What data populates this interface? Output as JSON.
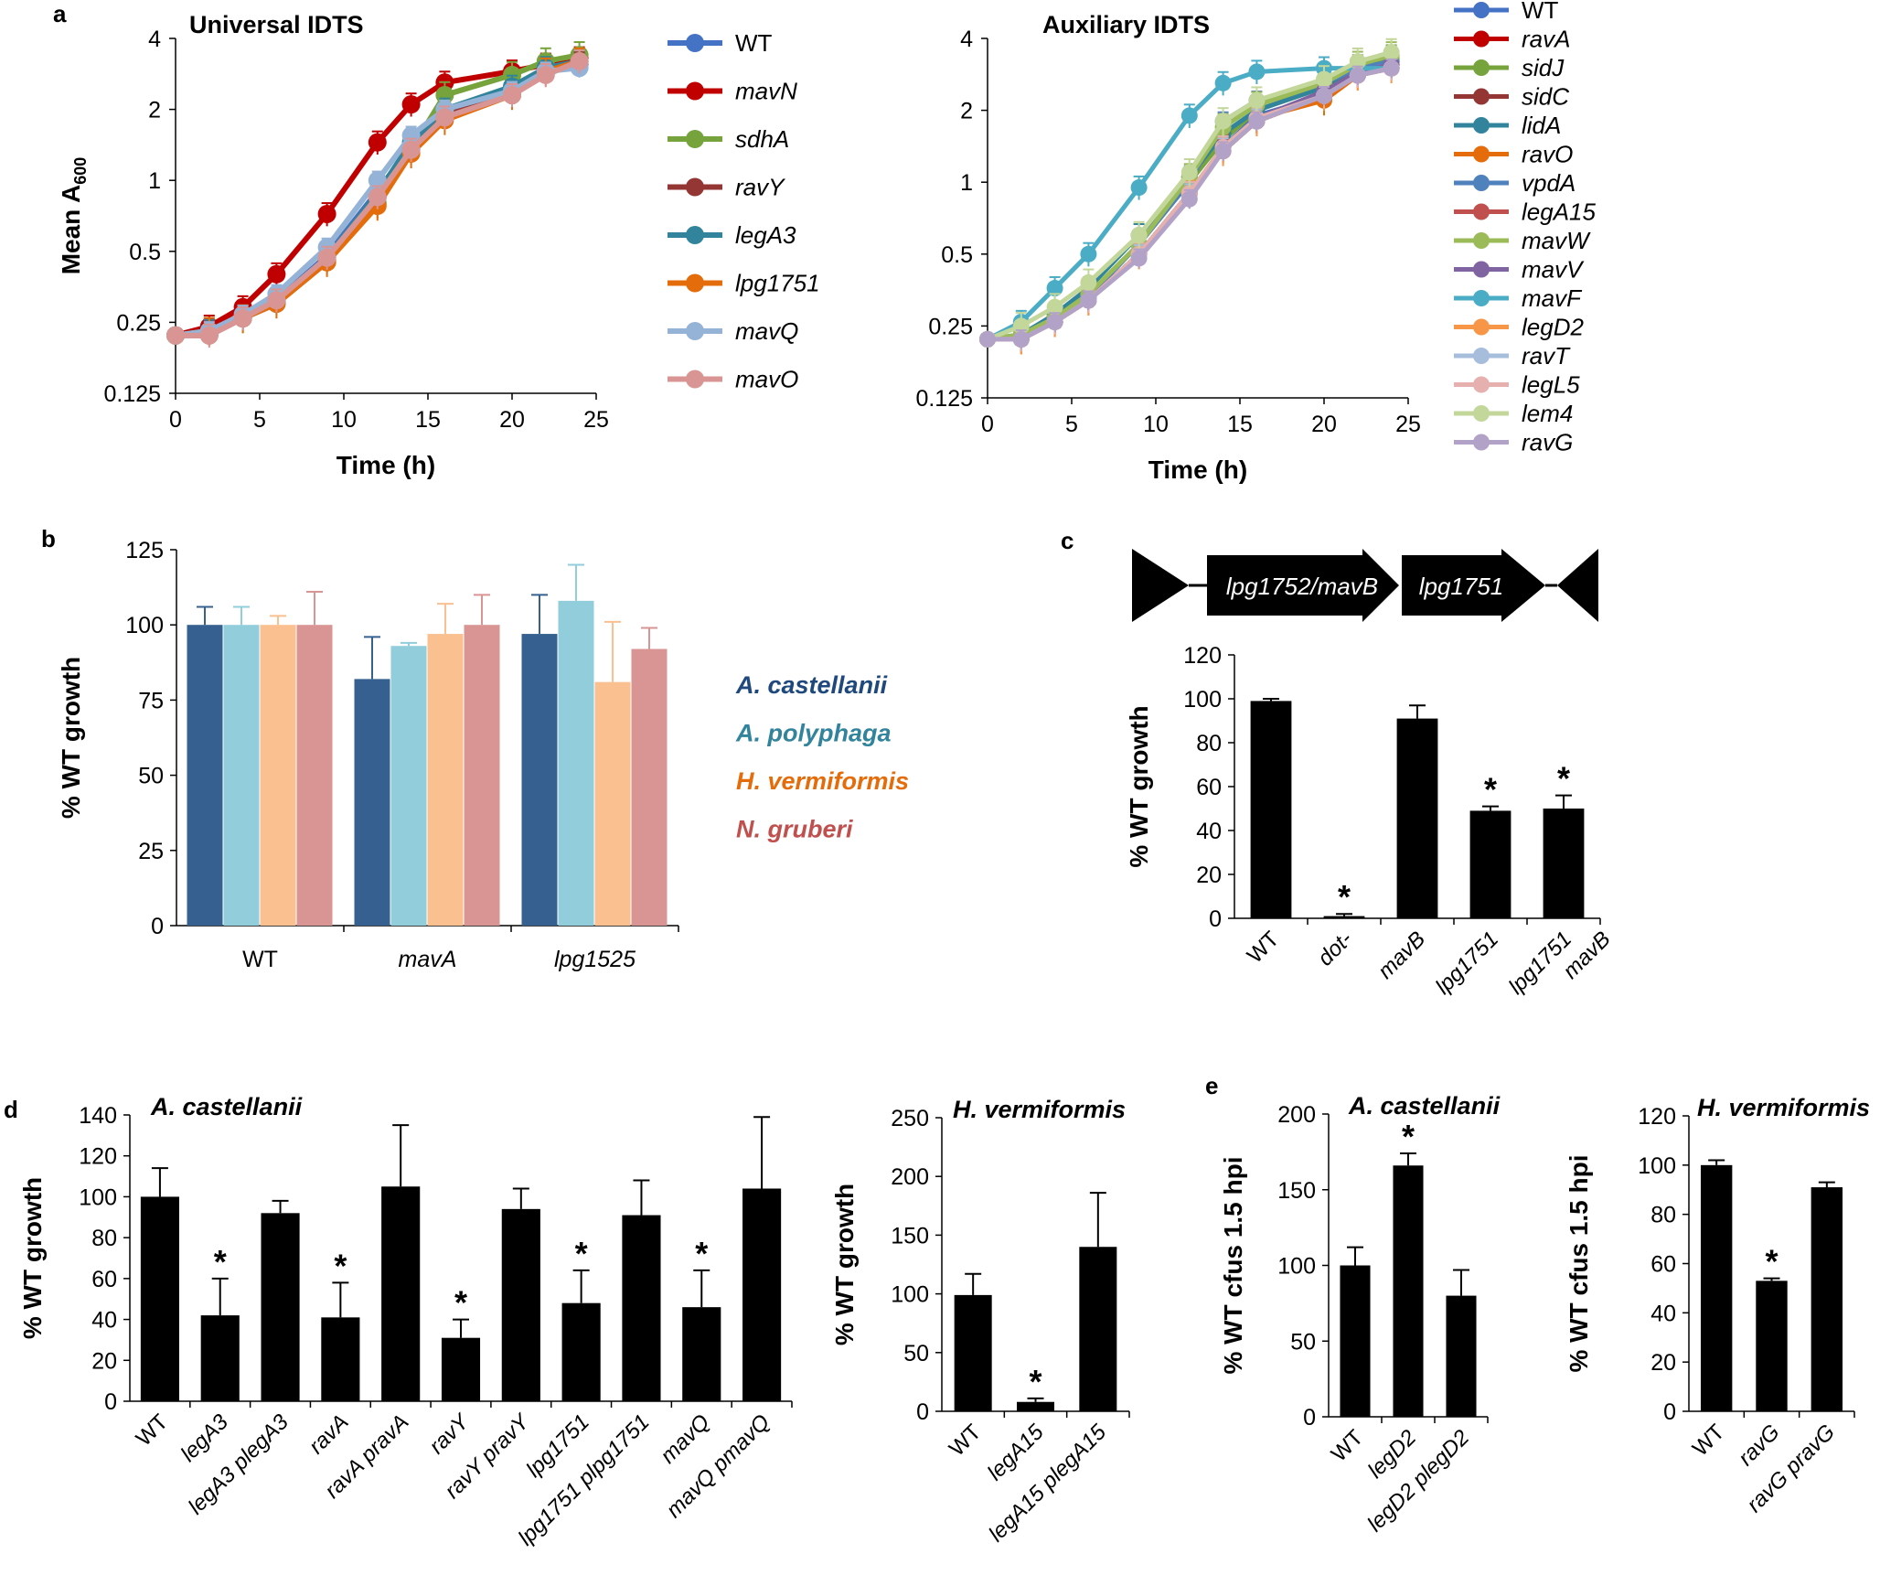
{
  "chart_data": [
    {
      "id": "a1",
      "panel_label": "a",
      "type": "line",
      "title": "Universal IDTS",
      "xlabel": "Time (h)",
      "ylabel": "Mean A",
      "ylabel_sub": "600",
      "yscale": "log2",
      "xlim": [
        0,
        25
      ],
      "ylim": [
        0.125,
        4
      ],
      "x_ticks": [
        0,
        5,
        10,
        15,
        20,
        25
      ],
      "y_ticks": [
        0.125,
        0.25,
        0.5,
        1,
        2,
        4
      ],
      "y_tick_labels": [
        "0.125",
        "0.25",
        "0.5",
        "1",
        "2",
        "4"
      ],
      "x": [
        0,
        2,
        4,
        6,
        9,
        12,
        14,
        16,
        20,
        22,
        24
      ],
      "series": [
        {
          "name": "WT",
          "color": "#4472c4",
          "values": [
            0.22,
            0.23,
            0.26,
            0.31,
            0.48,
            0.9,
            1.4,
            1.9,
            2.4,
            2.9,
            3.1
          ]
        },
        {
          "name": "mavN",
          "color": "#c00000",
          "values": [
            0.22,
            0.24,
            0.29,
            0.4,
            0.72,
            1.45,
            2.1,
            2.6,
            2.9,
            3.1,
            3.3
          ]
        },
        {
          "name": "sdhA",
          "color": "#77a33c",
          "values": [
            0.22,
            0.23,
            0.26,
            0.31,
            0.46,
            0.8,
            1.35,
            2.3,
            2.8,
            3.2,
            3.4
          ]
        },
        {
          "name": "ravY",
          "color": "#943634",
          "values": [
            0.22,
            0.22,
            0.26,
            0.3,
            0.45,
            0.85,
            1.35,
            1.9,
            2.3,
            2.9,
            3.2
          ]
        },
        {
          "name": "legA3",
          "color": "#31849b",
          "values": [
            0.22,
            0.23,
            0.26,
            0.31,
            0.47,
            0.88,
            1.45,
            2.0,
            2.5,
            3.0,
            3.2
          ]
        },
        {
          "name": "lpg1751",
          "color": "#e46c0a",
          "values": [
            0.22,
            0.23,
            0.26,
            0.3,
            0.45,
            0.78,
            1.3,
            1.8,
            2.3,
            2.9,
            3.2
          ]
        },
        {
          "name": "mavQ",
          "color": "#95b3d7",
          "values": [
            0.22,
            0.23,
            0.27,
            0.33,
            0.52,
            1.0,
            1.55,
            2.0,
            2.4,
            2.9,
            3.0
          ]
        },
        {
          "name": "mavO",
          "color": "#d99594",
          "values": [
            0.22,
            0.22,
            0.26,
            0.31,
            0.47,
            0.85,
            1.35,
            1.85,
            2.3,
            2.8,
            3.2
          ]
        }
      ]
    },
    {
      "id": "a2",
      "type": "line",
      "title": "Auxiliary IDTS",
      "xlabel": "Time (h)",
      "ylabel": "",
      "yscale": "log2",
      "xlim": [
        0,
        25
      ],
      "ylim": [
        0.125,
        4
      ],
      "x_ticks": [
        0,
        5,
        10,
        15,
        20,
        25
      ],
      "y_ticks": [
        0.125,
        0.25,
        0.5,
        1,
        2,
        4
      ],
      "y_tick_labels": [
        "0.125",
        "0.25",
        "0.5",
        "1",
        "2",
        "4"
      ],
      "x": [
        0,
        2,
        4,
        6,
        9,
        12,
        14,
        16,
        20,
        22,
        24
      ],
      "series": [
        {
          "name": "WT",
          "color": "#4472c4",
          "values": [
            0.22,
            0.22,
            0.26,
            0.32,
            0.5,
            0.9,
            1.4,
            1.9,
            2.3,
            2.8,
            3.0
          ]
        },
        {
          "name": "ravA",
          "color": "#c00000",
          "values": [
            0.22,
            0.22,
            0.26,
            0.32,
            0.5,
            0.9,
            1.4,
            1.8,
            2.3,
            2.8,
            3.1
          ]
        },
        {
          "name": "sidJ",
          "color": "#77a33c",
          "values": [
            0.22,
            0.23,
            0.27,
            0.34,
            0.55,
            1.0,
            1.5,
            2.0,
            2.5,
            3.0,
            3.3
          ]
        },
        {
          "name": "sidC",
          "color": "#943634",
          "values": [
            0.22,
            0.22,
            0.26,
            0.32,
            0.5,
            0.9,
            1.35,
            1.8,
            2.3,
            2.8,
            3.0
          ]
        },
        {
          "name": "lidA",
          "color": "#31849b",
          "values": [
            0.22,
            0.23,
            0.28,
            0.36,
            0.6,
            1.05,
            1.6,
            2.0,
            2.5,
            3.0,
            3.2
          ]
        },
        {
          "name": "ravO",
          "color": "#e46c0a",
          "values": [
            0.22,
            0.22,
            0.26,
            0.32,
            0.5,
            0.9,
            1.4,
            1.85,
            2.2,
            2.8,
            3.1
          ]
        },
        {
          "name": "vpdA",
          "color": "#4f81bd",
          "values": [
            0.22,
            0.22,
            0.26,
            0.33,
            0.55,
            1.0,
            1.8,
            2.2,
            2.6,
            3.0,
            3.2
          ]
        },
        {
          "name": "legA15",
          "color": "#c0504d",
          "values": [
            0.22,
            0.22,
            0.26,
            0.32,
            0.5,
            0.9,
            1.35,
            1.8,
            2.3,
            2.8,
            3.0
          ]
        },
        {
          "name": "mavW",
          "color": "#9bbb59",
          "values": [
            0.22,
            0.23,
            0.27,
            0.34,
            0.55,
            1.05,
            1.7,
            2.1,
            2.6,
            3.1,
            3.4
          ]
        },
        {
          "name": "mavV",
          "color": "#8064a2",
          "values": [
            0.22,
            0.22,
            0.26,
            0.32,
            0.5,
            0.9,
            1.4,
            1.85,
            2.4,
            2.9,
            3.1
          ]
        },
        {
          "name": "mavF",
          "color": "#4bacc6",
          "values": [
            0.22,
            0.26,
            0.36,
            0.5,
            0.95,
            1.9,
            2.6,
            2.9,
            3.0,
            3.0,
            3.0
          ]
        },
        {
          "name": "legD2",
          "color": "#f79646",
          "values": [
            0.22,
            0.22,
            0.26,
            0.32,
            0.5,
            0.9,
            1.35,
            1.8,
            2.3,
            2.8,
            3.0
          ]
        },
        {
          "name": "ravT",
          "color": "#a6bddb",
          "values": [
            0.22,
            0.22,
            0.26,
            0.32,
            0.5,
            0.9,
            1.4,
            1.85,
            2.3,
            2.8,
            3.0
          ]
        },
        {
          "name": "legL5",
          "color": "#e6b0ae",
          "values": [
            0.22,
            0.22,
            0.26,
            0.32,
            0.5,
            0.9,
            1.4,
            1.85,
            2.3,
            2.8,
            3.0
          ]
        },
        {
          "name": "lem4",
          "color": "#c4d79b",
          "values": [
            0.22,
            0.25,
            0.3,
            0.38,
            0.6,
            1.1,
            1.8,
            2.2,
            2.7,
            3.2,
            3.5
          ]
        },
        {
          "name": "ravG",
          "color": "#b3a2c7",
          "values": [
            0.22,
            0.22,
            0.26,
            0.32,
            0.48,
            0.85,
            1.35,
            1.8,
            2.3,
            2.8,
            3.0
          ]
        }
      ]
    },
    {
      "id": "b",
      "panel_label": "b",
      "type": "bar",
      "title": "",
      "xlabel": "",
      "ylabel": "% WT growth",
      "ylim": [
        0,
        125
      ],
      "y_ticks": [
        0,
        25,
        50,
        75,
        100,
        125
      ],
      "categories": [
        "WT",
        "mavA",
        "lpg1525"
      ],
      "category_italic": [
        false,
        true,
        true
      ],
      "series": [
        {
          "name": "A. castellanii",
          "color": "#35608f",
          "values": [
            100,
            82,
            97
          ],
          "errors": [
            6,
            14,
            13
          ]
        },
        {
          "name": "A. polyphaga",
          "color": "#92cddc",
          "values": [
            100,
            93,
            108
          ],
          "errors": [
            6,
            1,
            12
          ]
        },
        {
          "name": "H. vermiformis",
          "color": "#fac090",
          "values": [
            100,
            97,
            81
          ],
          "errors": [
            3,
            10,
            20
          ]
        },
        {
          "name": "N. gruberi",
          "color": "#d99594",
          "values": [
            100,
            100,
            92
          ],
          "errors": [
            11,
            10,
            7
          ]
        }
      ],
      "legend_text_colors": [
        "#1f497d",
        "#31849b",
        "#e46c0a",
        "#c0504d"
      ]
    },
    {
      "id": "c",
      "panel_label": "c",
      "type": "bar",
      "title": "",
      "xlabel": "",
      "ylabel": "% WT growth",
      "ylim": [
        0,
        120
      ],
      "y_ticks": [
        0,
        20,
        40,
        60,
        80,
        100,
        120
      ],
      "categories": [
        "WT",
        "dot-",
        "mavB",
        "lpg1751",
        "lpg1751 mavB"
      ],
      "category_lines": [
        [
          "WT"
        ],
        [
          "dot-"
        ],
        [
          "mavB"
        ],
        [
          "lpg1751"
        ],
        [
          "lpg1751",
          "mavB"
        ]
      ],
      "category_italic": [
        false,
        true,
        true,
        true,
        true
      ],
      "values": [
        99,
        1,
        91,
        49,
        50
      ],
      "errors": [
        1,
        1,
        6,
        2,
        6
      ],
      "significant": [
        false,
        true,
        false,
        true,
        true
      ],
      "gene_map": [
        "lpg1752/mavB",
        "lpg1751"
      ]
    },
    {
      "id": "d1",
      "panel_label": "d",
      "type": "bar",
      "title": "A. castellanii",
      "xlabel": "",
      "ylabel": "% WT growth",
      "ylim": [
        0,
        140
      ],
      "y_ticks": [
        0,
        20,
        40,
        60,
        80,
        100,
        120,
        140
      ],
      "categories": [
        "WT",
        "legA3",
        "legA3 plegA3",
        "ravA",
        "ravA pravA",
        "ravY",
        "ravY pravY",
        "lpg1751",
        "lpg1751 plpg1751",
        "mavQ",
        "mavQ pmavQ"
      ],
      "category_italic": [
        false,
        true,
        true,
        true,
        true,
        true,
        true,
        true,
        true,
        true,
        true
      ],
      "values": [
        100,
        42,
        92,
        41,
        105,
        31,
        94,
        48,
        91,
        46,
        104
      ],
      "errors": [
        14,
        18,
        6,
        17,
        30,
        9,
        10,
        16,
        17,
        18,
        35
      ],
      "significant": [
        false,
        true,
        false,
        true,
        false,
        true,
        false,
        true,
        false,
        true,
        false
      ]
    },
    {
      "id": "d2",
      "type": "bar",
      "title": "H. vermiformis",
      "xlabel": "",
      "ylabel": "% WT growth",
      "ylim": [
        0,
        250
      ],
      "y_ticks": [
        0,
        50,
        100,
        150,
        200,
        250
      ],
      "categories": [
        "WT",
        "legA15",
        "legA15 plegA15"
      ],
      "category_italic": [
        false,
        true,
        true
      ],
      "values": [
        99,
        8,
        140
      ],
      "errors": [
        18,
        3,
        46
      ],
      "significant": [
        false,
        true,
        false
      ]
    },
    {
      "id": "e1",
      "panel_label": "e",
      "type": "bar",
      "title": "A. castellanii",
      "xlabel": "",
      "ylabel": "% WT cfus 1.5 hpi",
      "ylim": [
        0,
        200
      ],
      "y_ticks": [
        0,
        50,
        100,
        150,
        200
      ],
      "categories": [
        "WT",
        "legD2",
        "legD2 plegD2"
      ],
      "category_italic": [
        false,
        true,
        true
      ],
      "values": [
        100,
        166,
        80
      ],
      "errors": [
        12,
        8,
        17
      ],
      "significant": [
        false,
        true,
        false
      ]
    },
    {
      "id": "e2",
      "type": "bar",
      "title": "H. vermiformis",
      "xlabel": "",
      "ylabel": "% WT cfus 1.5 hpi",
      "ylim": [
        0,
        120
      ],
      "y_ticks": [
        0,
        20,
        40,
        60,
        80,
        100,
        120
      ],
      "categories": [
        "WT",
        "ravG",
        "ravG pravG"
      ],
      "category_italic": [
        false,
        true,
        true
      ],
      "values": [
        100,
        53,
        91
      ],
      "errors": [
        2,
        1,
        2
      ],
      "significant": [
        false,
        true,
        false
      ]
    }
  ]
}
